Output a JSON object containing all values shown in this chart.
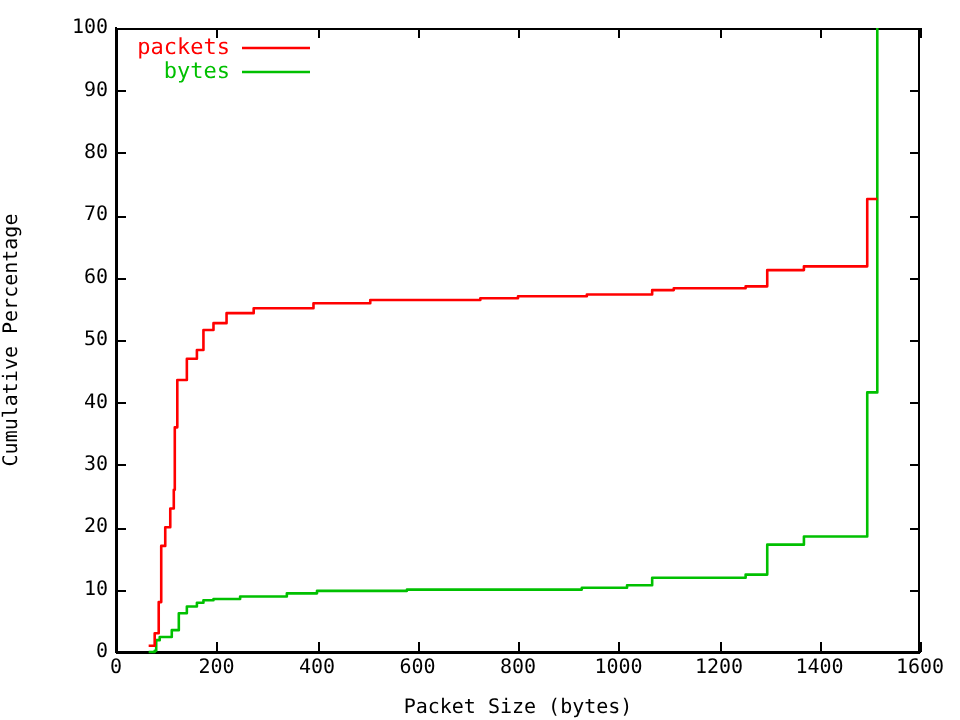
{
  "chart_data": {
    "type": "step",
    "xlabel": "Packet Size (bytes)",
    "ylabel": "Cumulative Percentage",
    "xlim": [
      0,
      1600
    ],
    "xticks": [
      0,
      200,
      400,
      600,
      800,
      1000,
      1200,
      1400,
      1600
    ],
    "ylim": [
      0,
      100
    ],
    "yticks": [
      0,
      10,
      20,
      30,
      40,
      50,
      60,
      70,
      80,
      90,
      100
    ],
    "grid": false,
    "legend": "top left",
    "marker": "none",
    "line_style": "solid",
    "series": [
      {
        "name": "packets",
        "color": "#ff0000",
        "x": [
          65,
          77,
          85,
          90,
          98,
          108,
          115,
          117,
          122,
          141,
          161,
          174,
          194,
          220,
          274,
          393,
          506,
          725,
          800,
          937,
          1067,
          1110,
          1253,
          1296,
          1369,
          1495,
          1515
        ],
        "values": [
          1,
          3,
          8,
          17,
          20,
          23,
          26,
          36,
          43.6,
          47,
          48.4,
          51.6,
          52.7,
          54.3,
          55.1,
          55.9,
          56.4,
          56.7,
          57.0,
          57.3,
          58.0,
          58.3,
          58.6,
          61.2,
          61.8,
          72.6,
          72.6
        ]
      },
      {
        "name": "bytes",
        "color": "#00c000",
        "x": [
          65,
          77,
          80,
          87,
          111,
          125,
          141,
          161,
          174,
          194,
          247,
          340,
          400,
          579,
          927,
          1017,
          1067,
          1253,
          1296,
          1369,
          1495,
          1515
        ],
        "values": [
          0,
          0.2,
          1.9,
          2.4,
          3.5,
          6.2,
          7.3,
          7.9,
          8.3,
          8.5,
          8.9,
          9.4,
          9.8,
          10.0,
          10.3,
          10.7,
          11.9,
          12.4,
          17.2,
          18.5,
          41.6,
          100
        ]
      }
    ]
  }
}
